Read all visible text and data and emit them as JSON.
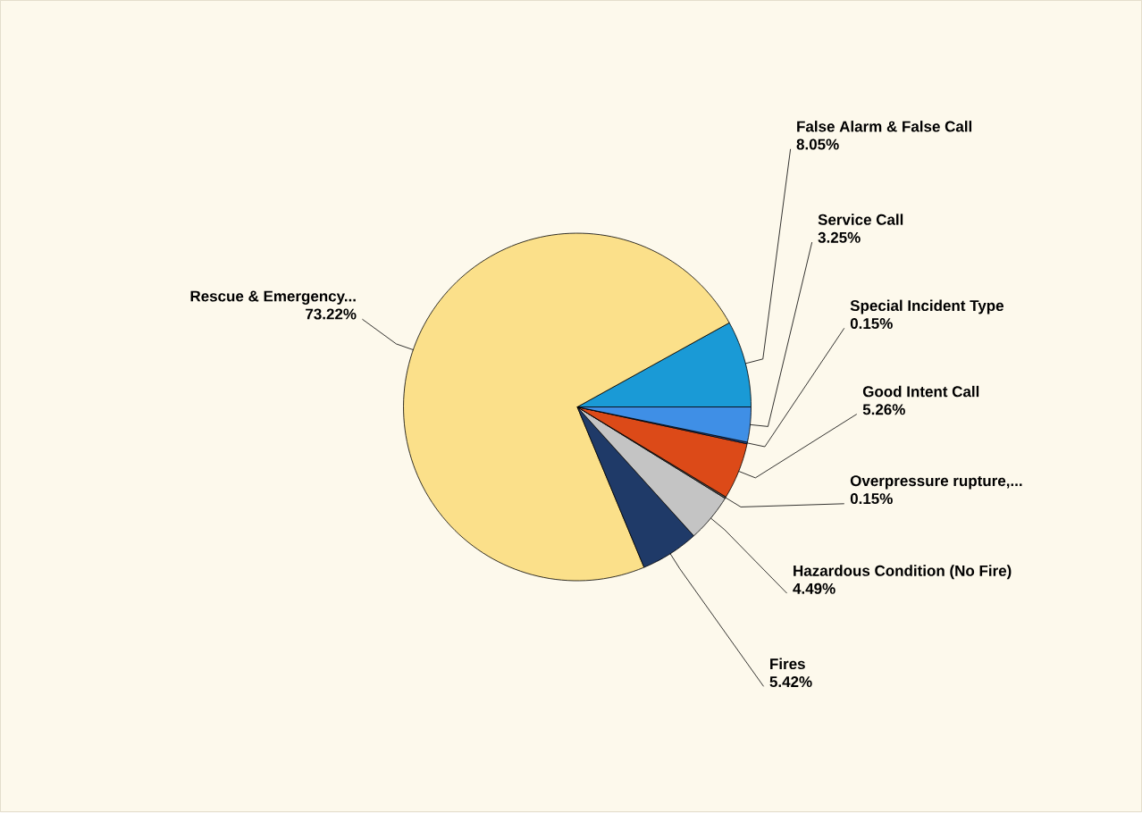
{
  "chart_data": {
    "type": "pie",
    "categories": [
      "False Alarm & False Call",
      "Rescue & Emergency...",
      "Fires",
      "Hazardous Condition (No Fire)",
      "Overpressure  rupture,...",
      "Good Intent Call",
      "Special Incident Type",
      "Service Call"
    ],
    "values": [
      8.05,
      73.22,
      5.42,
      4.49,
      0.15,
      5.26,
      0.15,
      3.25
    ],
    "value_labels": [
      "8.05%",
      "73.22%",
      "5.42%",
      "4.49%",
      "0.15%",
      "5.26%",
      "0.15%",
      "3.25%"
    ],
    "colors": [
      "#1a9ad6",
      "#fbe08a",
      "#1f3a68",
      "#c4c4c4",
      "#5a5a5a",
      "#dc4a18",
      "#2a55a8",
      "#3f8fe6"
    ]
  }
}
